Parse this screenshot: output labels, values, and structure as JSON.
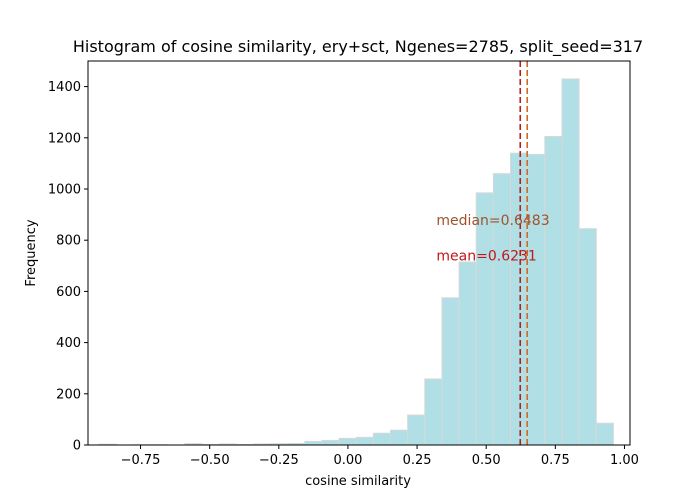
{
  "chart_data": {
    "type": "bar",
    "title": "Histogram of cosine similarity, ery+sct, Ngenes=2785, split_seed=317",
    "xlabel": "cosine similarity",
    "ylabel": "Frequency",
    "xlim": [
      -0.94,
      1.02
    ],
    "ylim": [
      0,
      1500
    ],
    "xticks": [
      -0.75,
      -0.5,
      -0.25,
      0.0,
      0.25,
      0.5,
      0.75,
      1.0
    ],
    "xtick_labels": [
      "−0.75",
      "−0.50",
      "−0.25",
      "0.00",
      "0.25",
      "0.50",
      "0.75",
      "1.00"
    ],
    "yticks": [
      0,
      200,
      400,
      600,
      800,
      1000,
      1200,
      1400
    ],
    "ytick_labels": [
      "0",
      "200",
      "400",
      "600",
      "800",
      "1000",
      "1200",
      "1400"
    ],
    "bar_color": "#b0dfe5",
    "bar_edge_color": "#d8d8d8",
    "bins": [
      {
        "x0": -0.9,
        "x1": -0.838,
        "count": 3
      },
      {
        "x0": -0.838,
        "x1": -0.776,
        "count": 0
      },
      {
        "x0": -0.776,
        "x1": -0.714,
        "count": 1
      },
      {
        "x0": -0.714,
        "x1": -0.652,
        "count": 1
      },
      {
        "x0": -0.652,
        "x1": -0.59,
        "count": 0
      },
      {
        "x0": -0.59,
        "x1": -0.528,
        "count": 5
      },
      {
        "x0": -0.528,
        "x1": -0.466,
        "count": 2
      },
      {
        "x0": -0.466,
        "x1": -0.404,
        "count": 4
      },
      {
        "x0": -0.404,
        "x1": -0.342,
        "count": 2
      },
      {
        "x0": -0.342,
        "x1": -0.28,
        "count": 4
      },
      {
        "x0": -0.28,
        "x1": -0.218,
        "count": 5
      },
      {
        "x0": -0.218,
        "x1": -0.156,
        "count": 6
      },
      {
        "x0": -0.156,
        "x1": -0.094,
        "count": 14
      },
      {
        "x0": -0.094,
        "x1": -0.032,
        "count": 18
      },
      {
        "x0": -0.032,
        "x1": 0.03,
        "count": 26
      },
      {
        "x0": 0.03,
        "x1": 0.092,
        "count": 30
      },
      {
        "x0": 0.092,
        "x1": 0.154,
        "count": 46
      },
      {
        "x0": 0.154,
        "x1": 0.216,
        "count": 58
      },
      {
        "x0": 0.216,
        "x1": 0.278,
        "count": 117
      },
      {
        "x0": 0.278,
        "x1": 0.34,
        "count": 258
      },
      {
        "x0": 0.34,
        "x1": 0.402,
        "count": 575
      },
      {
        "x0": 0.402,
        "x1": 0.464,
        "count": 715
      },
      {
        "x0": 0.464,
        "x1": 0.526,
        "count": 985
      },
      {
        "x0": 0.526,
        "x1": 0.588,
        "count": 1060
      },
      {
        "x0": 0.588,
        "x1": 0.65,
        "count": 1140
      },
      {
        "x0": 0.65,
        "x1": 0.712,
        "count": 1135
      },
      {
        "x0": 0.712,
        "x1": 0.774,
        "count": 1205
      },
      {
        "x0": 0.774,
        "x1": 0.836,
        "count": 1430
      },
      {
        "x0": 0.836,
        "x1": 0.898,
        "count": 845
      },
      {
        "x0": 0.898,
        "x1": 0.96,
        "count": 85
      }
    ],
    "reference_lines": [
      {
        "label": "median",
        "value": 0.6483,
        "color": "#d2691e",
        "style": "dashed"
      },
      {
        "label": "mean",
        "value": 0.6231,
        "color": "#b22222",
        "style": "dashed"
      }
    ],
    "annotations": [
      {
        "text": "median=0.6483",
        "x": 0.32,
        "y": 860,
        "color": "#a0522d"
      },
      {
        "text": "mean=0.6231",
        "x": 0.32,
        "y": 720,
        "color": "#c0181c"
      }
    ]
  }
}
